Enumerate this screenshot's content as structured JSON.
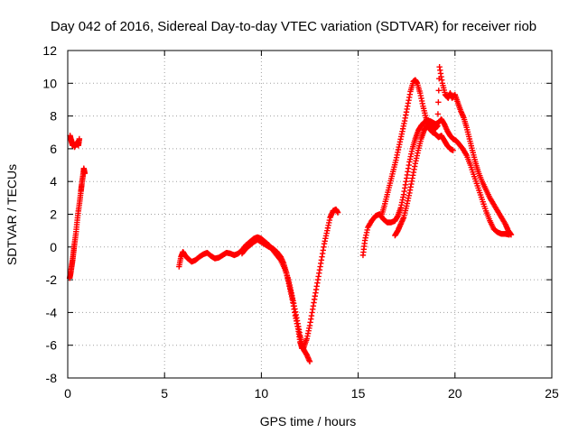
{
  "chart_data": {
    "type": "scatter",
    "title": "Day 042 of 2016, Sidereal Day-to-day VTEC variation (SDTVAR) for receiver riob",
    "xlabel": "GPS time / hours",
    "ylabel": "SDTVAR / TECUs",
    "xlim": [
      0,
      25
    ],
    "ylim": [
      -8,
      12
    ],
    "xticks": [
      0,
      5,
      10,
      15,
      20,
      25
    ],
    "yticks": [
      -8,
      -6,
      -4,
      -2,
      0,
      2,
      4,
      6,
      8,
      10,
      12
    ],
    "grid": true,
    "marker": "+",
    "series": [
      {
        "name": "SDTVAR",
        "color": "#ff0000",
        "segments": [
          [
            [
              0.12,
              6.8
            ],
            [
              0.18,
              6.5
            ],
            [
              0.25,
              6.2
            ],
            [
              0.3,
              6.4
            ],
            [
              0.35,
              6.1
            ],
            [
              0.42,
              6.3
            ],
            [
              0.5,
              6.4
            ],
            [
              0.55,
              6.2
            ],
            [
              0.6,
              6.6
            ]
          ],
          [
            [
              0.1,
              -1.9
            ],
            [
              0.15,
              -1.6
            ],
            [
              0.2,
              -1.2
            ],
            [
              0.25,
              -0.8
            ],
            [
              0.3,
              -0.3
            ],
            [
              0.35,
              0.2
            ],
            [
              0.42,
              0.8
            ],
            [
              0.48,
              1.5
            ],
            [
              0.55,
              2.2
            ],
            [
              0.62,
              2.8
            ],
            [
              0.68,
              3.4
            ],
            [
              0.72,
              3.8
            ],
            [
              0.78,
              4.3
            ],
            [
              0.83,
              4.8
            ],
            [
              0.88,
              4.5
            ]
          ],
          [
            [
              5.75,
              -1.2
            ],
            [
              5.85,
              -0.6
            ],
            [
              5.95,
              -0.3
            ],
            [
              6.05,
              -0.5
            ],
            [
              6.2,
              -0.7
            ],
            [
              6.4,
              -0.9
            ],
            [
              6.6,
              -0.8
            ],
            [
              6.8,
              -0.6
            ],
            [
              7.0,
              -0.45
            ],
            [
              7.2,
              -0.35
            ],
            [
              7.4,
              -0.55
            ],
            [
              7.6,
              -0.7
            ],
            [
              7.8,
              -0.65
            ],
            [
              8.0,
              -0.5
            ],
            [
              8.2,
              -0.35
            ],
            [
              8.4,
              -0.4
            ],
            [
              8.6,
              -0.5
            ],
            [
              8.8,
              -0.4
            ],
            [
              9.0,
              -0.2
            ],
            [
              9.2,
              0.1
            ],
            [
              9.4,
              0.3
            ],
            [
              9.6,
              0.5
            ],
            [
              9.8,
              0.6
            ],
            [
              10.0,
              0.5
            ],
            [
              10.2,
              0.3
            ],
            [
              10.4,
              0.1
            ],
            [
              10.6,
              -0.2
            ],
            [
              10.8,
              -0.5
            ],
            [
              11.0,
              -0.8
            ],
            [
              11.2,
              -1.3
            ],
            [
              11.4,
              -2.0
            ],
            [
              11.55,
              -2.8
            ],
            [
              11.7,
              -3.6
            ],
            [
              11.85,
              -4.5
            ],
            [
              12.0,
              -5.4
            ],
            [
              12.1,
              -6.0
            ],
            [
              12.2,
              -6.3
            ],
            [
              12.35,
              -6.6
            ],
            [
              12.5,
              -7.0
            ]
          ],
          [
            [
              9.0,
              -0.4
            ],
            [
              9.2,
              -0.1
            ],
            [
              9.4,
              0.1
            ],
            [
              9.6,
              0.3
            ],
            [
              9.8,
              0.45
            ],
            [
              10.0,
              0.3
            ],
            [
              10.2,
              0.15
            ],
            [
              10.4,
              0.0
            ],
            [
              10.6,
              -0.1
            ],
            [
              10.8,
              -0.3
            ],
            [
              11.0,
              -0.6
            ],
            [
              11.15,
              -1.0
            ],
            [
              11.3,
              -1.6
            ],
            [
              11.45,
              -2.4
            ],
            [
              11.6,
              -3.2
            ],
            [
              11.75,
              -4.2
            ],
            [
              11.9,
              -5.0
            ],
            [
              12.0,
              -5.8
            ],
            [
              12.1,
              -6.2
            ],
            [
              12.2,
              -6.1
            ],
            [
              12.35,
              -5.6
            ],
            [
              12.5,
              -4.8
            ],
            [
              12.65,
              -3.8
            ],
            [
              12.8,
              -2.8
            ],
            [
              12.95,
              -1.8
            ],
            [
              13.1,
              -0.8
            ],
            [
              13.25,
              0.2
            ],
            [
              13.4,
              1.0
            ],
            [
              13.55,
              1.8
            ],
            [
              13.7,
              2.2
            ],
            [
              13.85,
              2.3
            ],
            [
              13.95,
              2.1
            ]
          ],
          [
            [
              15.25,
              -0.5
            ],
            [
              15.35,
              0.4
            ],
            [
              15.5,
              1.2
            ],
            [
              15.7,
              1.6
            ],
            [
              15.9,
              1.9
            ],
            [
              16.1,
              2.0
            ],
            [
              16.3,
              1.7
            ],
            [
              16.5,
              1.5
            ],
            [
              16.7,
              1.5
            ],
            [
              16.9,
              1.6
            ],
            [
              17.05,
              1.9
            ],
            [
              17.2,
              2.4
            ],
            [
              17.35,
              3.2
            ],
            [
              17.5,
              4.2
            ],
            [
              17.65,
              5.2
            ],
            [
              17.8,
              6.0
            ],
            [
              17.95,
              6.6
            ],
            [
              18.1,
              7.1
            ],
            [
              18.25,
              7.4
            ],
            [
              18.4,
              7.6
            ],
            [
              18.55,
              7.7
            ],
            [
              18.7,
              7.7
            ],
            [
              18.85,
              7.6
            ],
            [
              19.0,
              7.5
            ],
            [
              19.15,
              7.6
            ],
            [
              19.3,
              7.8
            ],
            [
              19.45,
              7.5
            ],
            [
              19.6,
              7.1
            ],
            [
              19.75,
              6.8
            ],
            [
              19.9,
              6.6
            ],
            [
              20.05,
              6.5
            ],
            [
              20.2,
              6.3
            ],
            [
              20.4,
              6.0
            ],
            [
              20.6,
              5.6
            ],
            [
              20.8,
              5.0
            ],
            [
              21.0,
              4.3
            ],
            [
              21.2,
              3.6
            ],
            [
              21.4,
              2.9
            ],
            [
              21.6,
              2.2
            ],
            [
              21.8,
              1.6
            ],
            [
              22.0,
              1.1
            ],
            [
              22.2,
              0.9
            ],
            [
              22.4,
              0.8
            ],
            [
              22.6,
              0.8
            ],
            [
              22.8,
              0.75
            ]
          ],
          [
            [
              16.2,
              1.9
            ],
            [
              16.35,
              2.5
            ],
            [
              16.5,
              3.2
            ],
            [
              16.65,
              3.9
            ],
            [
              16.8,
              4.6
            ],
            [
              16.95,
              5.3
            ],
            [
              17.1,
              6.1
            ],
            [
              17.25,
              6.9
            ],
            [
              17.4,
              7.7
            ],
            [
              17.55,
              8.6
            ],
            [
              17.7,
              9.5
            ],
            [
              17.85,
              10.1
            ],
            [
              17.95,
              10.2
            ],
            [
              18.05,
              10.0
            ],
            [
              18.2,
              9.4
            ],
            [
              18.35,
              8.6
            ],
            [
              18.5,
              7.9
            ],
            [
              18.65,
              7.4
            ],
            [
              18.8,
              7.3
            ],
            [
              18.95,
              7.2
            ],
            [
              19.1,
              7.4
            ],
            [
              19.2,
              11.0
            ],
            [
              19.35,
              10.0
            ],
            [
              19.5,
              9.3
            ],
            [
              19.65,
              9.1
            ],
            [
              19.75,
              9.4
            ],
            [
              19.85,
              9.1
            ],
            [
              20.0,
              9.3
            ],
            [
              20.15,
              8.8
            ],
            [
              20.3,
              8.3
            ],
            [
              20.45,
              7.9
            ],
            [
              20.6,
              7.3
            ],
            [
              20.75,
              6.6
            ],
            [
              20.9,
              5.9
            ],
            [
              21.05,
              5.2
            ],
            [
              21.2,
              4.6
            ],
            [
              21.4,
              4.0
            ],
            [
              21.6,
              3.5
            ],
            [
              21.8,
              3.0
            ],
            [
              22.0,
              2.6
            ],
            [
              22.2,
              2.2
            ],
            [
              22.4,
              1.8
            ],
            [
              22.6,
              1.4
            ],
            [
              22.75,
              1.0
            ],
            [
              22.9,
              0.75
            ]
          ],
          [
            [
              16.9,
              0.7
            ],
            [
              17.05,
              1.0
            ],
            [
              17.2,
              1.4
            ],
            [
              17.35,
              1.8
            ],
            [
              17.5,
              2.5
            ],
            [
              17.65,
              3.3
            ],
            [
              17.8,
              4.2
            ],
            [
              17.95,
              5.1
            ],
            [
              18.1,
              5.9
            ],
            [
              18.25,
              6.6
            ],
            [
              18.4,
              7.1
            ],
            [
              18.55,
              7.4
            ],
            [
              18.7,
              7.2
            ],
            [
              18.85,
              7.0
            ],
            [
              19.0,
              6.9
            ],
            [
              19.15,
              6.7
            ],
            [
              19.3,
              6.8
            ],
            [
              19.45,
              6.5
            ],
            [
              19.6,
              6.2
            ],
            [
              19.75,
              6.0
            ],
            [
              19.9,
              5.9
            ]
          ]
        ]
      }
    ]
  }
}
